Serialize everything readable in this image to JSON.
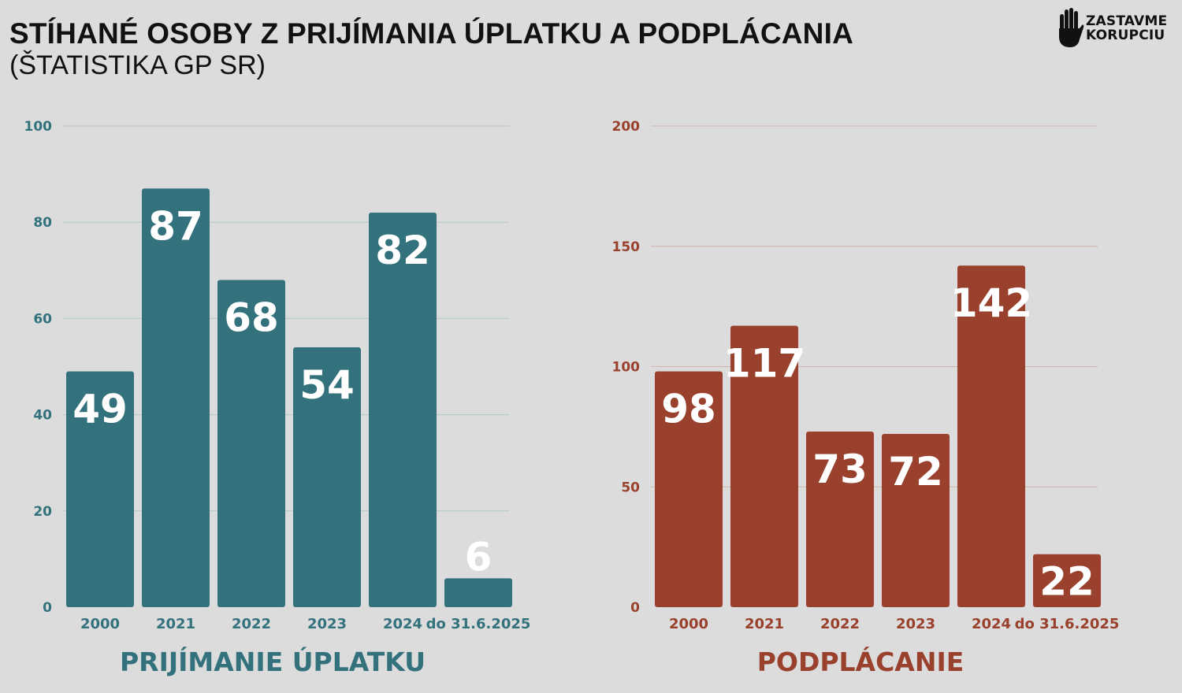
{
  "header": {
    "title": "STÍHANÉ OSOBY Z PRIJÍMANIA ÚPLATKU A PODPLÁCANIA",
    "subtitle": "(ŠTATISTIKA GP SR)"
  },
  "logo": {
    "line1": "ZASTAVME",
    "line2": "KORUPCIU",
    "icon": "hand-icon"
  },
  "colors": {
    "teal": "#33727d",
    "red": "#9a412e",
    "grid_teal": "#b3c9c9",
    "grid_red": "#d2b4b0"
  },
  "chart_data": [
    {
      "type": "bar",
      "title": "PRIJÍMANIE ÚPLATKU",
      "categories": [
        "2000",
        "2021",
        "2022",
        "2023",
        "2024",
        "do 31.6.2025"
      ],
      "values": [
        49,
        87,
        68,
        54,
        82,
        6
      ],
      "ylim": [
        0,
        100
      ],
      "yticks": [
        0,
        20,
        40,
        60,
        80,
        100
      ],
      "grid": true,
      "color": "#33727d"
    },
    {
      "type": "bar",
      "title": "PODPLÁCANIE",
      "categories": [
        "2000",
        "2021",
        "2022",
        "2023",
        "2024",
        "do 31.6.2025"
      ],
      "values": [
        98,
        117,
        73,
        72,
        142,
        22
      ],
      "ylim": [
        0,
        200
      ],
      "yticks": [
        0,
        50,
        100,
        150,
        200
      ],
      "grid": true,
      "color": "#9a412e"
    }
  ]
}
